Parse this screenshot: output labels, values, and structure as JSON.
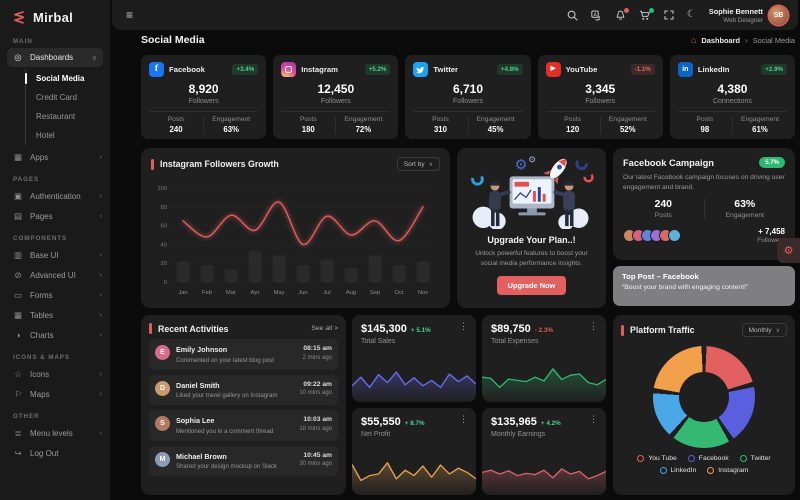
{
  "brand": {
    "name": "Mirbal"
  },
  "icons": {
    "hamburger": "≡",
    "moon": "☾",
    "home": "⌂",
    "gear": "⚙",
    "kebab": "⋮",
    "chevron_down": "∨",
    "chevron_right": "›",
    "dashboards": "◎",
    "apps": "▦",
    "authentication": "▣",
    "pages": "▤",
    "base_ui": "▥",
    "advanced_ui": "⊘",
    "forms": "▭",
    "tables": "▦",
    "charts": "◑",
    "icons_item": "☆",
    "maps": "⚐",
    "menu_levels": "≣",
    "log_out": "↪"
  },
  "topbar": {
    "user_name": "Sophie Bennett",
    "user_role": "Web Designer",
    "user_initials": "SB"
  },
  "page": {
    "title": "Social Media",
    "breadcrumb": {
      "home": "Dashboard",
      "current": "Social Media"
    }
  },
  "sidebar": {
    "sections": {
      "main": "MAIN",
      "pages": "PAGES",
      "components": "COMPONENTS",
      "icons_maps": "ICONS & MAPS",
      "other": "OTHER"
    },
    "items": {
      "dashboards": "Dashboards",
      "apps": "Apps",
      "authentication": "Authentication",
      "pages": "Pages",
      "base_ui": "Base UI",
      "advanced_ui": "Advanced UI",
      "forms": "Forms",
      "tables": "Tables",
      "charts": "Charts",
      "icons": "Icons",
      "maps": "Maps",
      "menu_levels": "Menu levels",
      "log_out": "Log Out"
    },
    "dashboards_submenu": [
      "Social Media",
      "Credit Card",
      "Restaurant",
      "Hotel"
    ]
  },
  "social_cards": [
    {
      "name": "Facebook",
      "badge": "+3.4%",
      "value": "8,920",
      "value_label": "Followers",
      "posts_label": "Posts",
      "posts": "240",
      "engagement_label": "Engagement",
      "engagement": "63%",
      "brand_color": "#1877f2"
    },
    {
      "name": "Instagram",
      "badge": "+5.2%",
      "value": "12,450",
      "value_label": "Followers",
      "posts_label": "Posts",
      "posts": "180",
      "engagement_label": "Engagement",
      "engagement": "72%",
      "brand_color": "#df4996"
    },
    {
      "name": "Twitter",
      "badge": "+4.8%",
      "value": "6,710",
      "value_label": "Followers",
      "posts_label": "Posts",
      "posts": "310",
      "engagement_label": "Engagement",
      "engagement": "45%",
      "brand_color": "#1da1f2"
    },
    {
      "name": "YouTube",
      "badge": "-1.1%",
      "value": "3,345",
      "value_label": "Followers",
      "posts_label": "Posts",
      "posts": "120",
      "engagement_label": "Engagement",
      "engagement": "52%",
      "brand_color": "#e52d27"
    },
    {
      "name": "LinkedIn",
      "badge": "+2.9%",
      "value": "4,380",
      "value_label": "Connections",
      "posts_label": "Posts",
      "posts": "98",
      "engagement_label": "Engagement",
      "engagement": "61%",
      "brand_color": "#0a66c2"
    }
  ],
  "growth_card": {
    "title": "Instagram Followers Growth",
    "sort_label": "Sort by"
  },
  "upgrade_card": {
    "title": "Upgrade Your Plan..!",
    "description": "Unlock powerful features to boost your social media performance insights.",
    "button_label": "Upgrade Now"
  },
  "campaign_card": {
    "title": "Facebook Campaign",
    "badge": "5.7%",
    "description": "Our latest Facebook campaign focuses on driving user engagement and brand.",
    "posts": "240",
    "posts_label": "Posts",
    "engagement": "63%",
    "engagement_label": "Engagement",
    "followers_delta": "+ 7,458",
    "followers_label": "Followers"
  },
  "top_post": {
    "title": "Top Post – Facebook",
    "quote": "“Boost your brand with engaging content!”"
  },
  "activities_card": {
    "title": "Recent Activities",
    "see_all": "See all >",
    "items": [
      {
        "name": "Emily Johnson",
        "action": "Commented on your latest blog post",
        "time": "08:15 am",
        "ago": "2 mins ago",
        "initial": "E",
        "color": "#d96a8e"
      },
      {
        "name": "Daniel Smith",
        "action": "Liked your travel gallery on Instagram",
        "time": "09:22 am",
        "ago": "10 mins ago",
        "initial": "D",
        "color": "#c79b6d"
      },
      {
        "name": "Sophia Lee",
        "action": "Mentioned you in a comment thread",
        "time": "10:03 am",
        "ago": "18 mins ago",
        "initial": "S",
        "color": "#b07a62"
      },
      {
        "name": "Michael Brown",
        "action": "Shared your design mockup on Slack",
        "time": "10:45 am",
        "ago": "30 mins ago",
        "initial": "M",
        "color": "#8d9bb5"
      }
    ]
  },
  "stat_cards": [
    {
      "value": "$145,300",
      "delta": "+ 5.1%",
      "label": "Total Sales"
    },
    {
      "value": "$89,750",
      "delta": "- 2.3%",
      "label": "Total Expenses"
    },
    {
      "value": "$55,550",
      "delta": "+ 8.7%",
      "label": "Net Profit"
    },
    {
      "value": "$135,965",
      "delta": "+ 4.2%",
      "label": "Monthly Earnings"
    }
  ],
  "traffic_card": {
    "title": "Platform Traffic",
    "range_label": "Monthly"
  },
  "chart_data": [
    {
      "type": "line",
      "title": "Instagram Followers Growth",
      "x": [
        "Jan",
        "Feb",
        "Mar",
        "Apr",
        "May",
        "Jun",
        "Jul",
        "Aug",
        "Sep",
        "Oct",
        "Nov"
      ],
      "series": [
        {
          "name": "Followers",
          "values": [
            65,
            48,
            71,
            55,
            85,
            40,
            70,
            50,
            65,
            44,
            80
          ]
        }
      ],
      "bar_overlay": [
        22,
        18,
        13,
        33,
        28,
        18,
        24,
        15,
        28,
        18,
        22
      ],
      "ylim": [
        0,
        100
      ],
      "yticks": [
        0,
        20,
        40,
        60,
        80,
        100
      ],
      "grid": true,
      "legend": false,
      "line_color": "#e25d5d"
    },
    {
      "type": "pie",
      "title": "Platform Traffic",
      "labels": [
        "You Tube",
        "Facebook",
        "Twitter",
        "LinkedIn",
        "Instagram"
      ],
      "values": [
        21,
        20,
        20,
        16,
        23
      ],
      "colors": [
        "#e2605f",
        "#5a5fe0",
        "#35b871",
        "#4aa8e8",
        "#f2a04c"
      ],
      "donut": true,
      "legend_position": "bottom"
    },
    {
      "type": "line",
      "title": "Total Sales trend",
      "values": [
        35,
        62,
        30,
        70,
        45,
        78,
        38,
        60,
        35,
        52,
        30,
        72,
        48,
        66,
        40
      ],
      "color": "#6b6bf0"
    },
    {
      "type": "line",
      "title": "Total Expenses trend",
      "values": [
        62,
        58,
        30,
        56,
        52,
        48,
        62,
        50,
        88,
        55,
        68,
        72,
        45,
        38,
        55
      ],
      "color": "#2eb872"
    },
    {
      "type": "line",
      "title": "Net Profit trend",
      "values": [
        80,
        30,
        45,
        50,
        85,
        35,
        62,
        45,
        75,
        40,
        78,
        50,
        68,
        55,
        35
      ],
      "color": "#e2a24e"
    },
    {
      "type": "line",
      "title": "Monthly Earnings trend",
      "values": [
        55,
        62,
        50,
        60,
        45,
        52,
        48,
        62,
        38,
        66,
        50,
        58,
        35,
        45,
        58
      ],
      "color": "#d66470"
    }
  ]
}
